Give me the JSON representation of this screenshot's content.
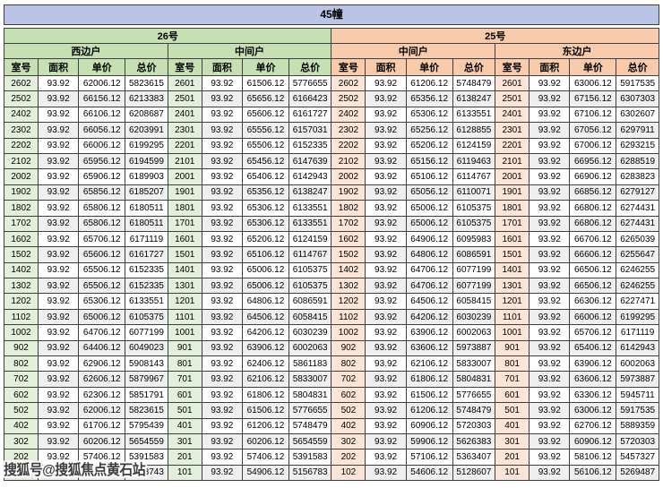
{
  "colors": {
    "border": "#3f3f3f",
    "title_bg": "#b9c4e7",
    "green_header": "#c6e0b4",
    "green_room": "#e2efda",
    "orange_header": "#f8cbad",
    "orange_room": "#fce4d6",
    "stripe": "#efefef"
  },
  "watermark": "搜狐号@搜狐焦点黄石站",
  "chart_data": {
    "type": "table",
    "title": "45幢",
    "buildings": [
      {
        "label": "26号",
        "units": [
          "西边户",
          "中间户"
        ]
      },
      {
        "label": "25号",
        "units": [
          "中间户",
          "东边户"
        ]
      }
    ],
    "col_headers": [
      "室号",
      "面积",
      "单价",
      "总价"
    ],
    "rows": [
      [
        "2602",
        "93.92",
        "62006.12",
        "5823615",
        "2601",
        "93.92",
        "61506.12",
        "5776655",
        "2602",
        "93.92",
        "61206.12",
        "5748479",
        "2601",
        "93.92",
        "63006.12",
        "5917535"
      ],
      [
        "2502",
        "93.92",
        "66156.12",
        "6213383",
        "2501",
        "93.92",
        "65656.12",
        "6166423",
        "2502",
        "93.92",
        "65356.12",
        "6138247",
        "2501",
        "93.92",
        "67156.12",
        "6307303"
      ],
      [
        "2402",
        "93.92",
        "66106.12",
        "6208687",
        "2401",
        "93.92",
        "65606.12",
        "6161727",
        "2402",
        "93.92",
        "65306.12",
        "6133551",
        "2401",
        "93.92",
        "67106.12",
        "6302607"
      ],
      [
        "2302",
        "93.92",
        "66056.12",
        "6203991",
        "2301",
        "93.92",
        "65556.12",
        "6157031",
        "2302",
        "93.92",
        "65256.12",
        "6128855",
        "2301",
        "93.92",
        "67056.12",
        "6297911"
      ],
      [
        "2202",
        "93.92",
        "66006.12",
        "6199295",
        "2201",
        "93.92",
        "65506.12",
        "6152335",
        "2202",
        "93.92",
        "65206.12",
        "6124159",
        "2201",
        "93.92",
        "67006.12",
        "6293215"
      ],
      [
        "2102",
        "93.92",
        "65956.12",
        "6194599",
        "2101",
        "93.92",
        "65456.12",
        "6147639",
        "2102",
        "93.92",
        "65156.12",
        "6119463",
        "2101",
        "93.92",
        "66956.12",
        "6288519"
      ],
      [
        "2002",
        "93.92",
        "65906.12",
        "6189903",
        "2001",
        "93.92",
        "65406.12",
        "6142943",
        "2002",
        "93.92",
        "65106.12",
        "6114767",
        "2001",
        "93.92",
        "66906.12",
        "6283823"
      ],
      [
        "1902",
        "93.92",
        "65856.12",
        "6185207",
        "1901",
        "93.92",
        "65356.12",
        "6138247",
        "1902",
        "93.92",
        "65056.12",
        "6110071",
        "1901",
        "93.92",
        "66856.12",
        "6279127"
      ],
      [
        "1802",
        "93.92",
        "65806.12",
        "6180511",
        "1801",
        "93.92",
        "65306.12",
        "6133551",
        "1802",
        "93.92",
        "65006.12",
        "6105375",
        "1801",
        "93.92",
        "66806.12",
        "6274431"
      ],
      [
        "1702",
        "93.92",
        "65806.12",
        "6180511",
        "1701",
        "93.92",
        "65306.12",
        "6133551",
        "1702",
        "93.92",
        "65006.12",
        "6105375",
        "1701",
        "93.92",
        "66806.12",
        "6274431"
      ],
      [
        "1602",
        "93.92",
        "65706.12",
        "6171119",
        "1601",
        "93.92",
        "65206.12",
        "6124159",
        "1602",
        "93.92",
        "64906.12",
        "6095983",
        "1601",
        "93.92",
        "66706.12",
        "6265039"
      ],
      [
        "1502",
        "93.92",
        "65606.12",
        "6161727",
        "1501",
        "93.92",
        "65106.12",
        "6114767",
        "1502",
        "93.92",
        "64806.12",
        "6086591",
        "1501",
        "93.92",
        "66606.12",
        "6255647"
      ],
      [
        "1402",
        "93.92",
        "65506.12",
        "6152335",
        "1401",
        "93.92",
        "65006.12",
        "6105375",
        "1402",
        "93.92",
        "64706.12",
        "6077199",
        "1401",
        "93.92",
        "66506.12",
        "6246255"
      ],
      [
        "1302",
        "93.92",
        "65506.12",
        "6152335",
        "1301",
        "93.92",
        "65006.12",
        "6105375",
        "1302",
        "93.92",
        "64706.12",
        "6077199",
        "1301",
        "93.92",
        "66506.12",
        "6246255"
      ],
      [
        "1202",
        "93.92",
        "65306.12",
        "6133551",
        "1201",
        "93.92",
        "64806.12",
        "6086591",
        "1202",
        "93.92",
        "64506.12",
        "6058415",
        "1201",
        "93.92",
        "66306.12",
        "6227471"
      ],
      [
        "1102",
        "93.92",
        "65006.12",
        "6105375",
        "1101",
        "93.92",
        "64506.12",
        "6058415",
        "1102",
        "93.92",
        "64206.12",
        "6030239",
        "1101",
        "93.92",
        "66006.12",
        "6199295"
      ],
      [
        "1002",
        "93.92",
        "64706.12",
        "6077199",
        "1001",
        "93.92",
        "64206.12",
        "6030239",
        "1002",
        "93.92",
        "63906.12",
        "6002063",
        "1001",
        "93.92",
        "65706.12",
        "6171119"
      ],
      [
        "902",
        "93.92",
        "64406.12",
        "6049023",
        "901",
        "93.92",
        "63906.12",
        "6002063",
        "902",
        "93.92",
        "63606.12",
        "5973887",
        "901",
        "93.92",
        "65406.12",
        "6142943"
      ],
      [
        "802",
        "93.92",
        "62906.12",
        "5908143",
        "801",
        "93.92",
        "62406.12",
        "5861183",
        "802",
        "93.92",
        "62106.12",
        "5833007",
        "801",
        "93.92",
        "63906.12",
        "6002063"
      ],
      [
        "702",
        "93.92",
        "62606.12",
        "5879967",
        "701",
        "93.92",
        "62106.12",
        "5833007",
        "702",
        "93.92",
        "61806.12",
        "5804831",
        "701",
        "93.92",
        "63606.12",
        "5973887"
      ],
      [
        "602",
        "93.92",
        "62306.12",
        "5851791",
        "601",
        "93.92",
        "61806.12",
        "5804831",
        "602",
        "93.92",
        "61506.12",
        "5776655",
        "601",
        "93.92",
        "63306.12",
        "5945711"
      ],
      [
        "502",
        "93.92",
        "62006.12",
        "5823615",
        "501",
        "93.92",
        "61506.12",
        "5776655",
        "502",
        "93.92",
        "61206.12",
        "5748479",
        "501",
        "93.92",
        "63006.12",
        "5917535"
      ],
      [
        "402",
        "93.92",
        "61706.12",
        "5795439",
        "401",
        "93.92",
        "61206.12",
        "5748479",
        "402",
        "93.92",
        "60906.12",
        "5720303",
        "401",
        "93.92",
        "62706.12",
        "5889359"
      ],
      [
        "302",
        "93.92",
        "60206.12",
        "5654559",
        "301",
        "93.92",
        "60206.12",
        "5654559",
        "302",
        "93.92",
        "59906.12",
        "5626383",
        "301",
        "93.92",
        "60906.12",
        "5720303"
      ],
      [
        "202",
        "93.92",
        "57406.12",
        "5391583",
        "201",
        "93.92",
        "57406.12",
        "5391583",
        "202",
        "93.92",
        "57106.12",
        "5363407",
        "201",
        "93.92",
        "58106.12",
        "5457327"
      ],
      [
        "102",
        "93.92",
        "55406.12",
        "5203743",
        "101",
        "93.92",
        "54906.12",
        "5156783",
        "102",
        "93.92",
        "54606.12",
        "5128607",
        "101",
        "93.92",
        "56106.12",
        "5269487"
      ]
    ],
    "obscured": "bottom-left 102 row is covered by the watermark; only trailing digits 743 of its total price are visible"
  }
}
